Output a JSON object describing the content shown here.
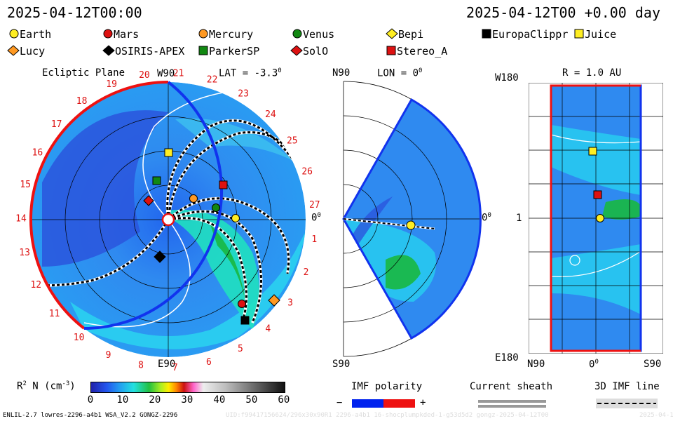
{
  "header": {
    "left_timestamp": "2025-04-12T00:00",
    "right_timestamp": "2025-04-12T00 +0.00 day"
  },
  "legend": {
    "bodies": [
      {
        "name": "Earth",
        "shape": "circle",
        "color": "#ffee22"
      },
      {
        "name": "Mars",
        "shape": "circle",
        "color": "#dd1111"
      },
      {
        "name": "Mercury",
        "shape": "circle",
        "color": "#ff9922"
      },
      {
        "name": "Venus",
        "shape": "circle",
        "color": "#118811"
      },
      {
        "name": "Bepi",
        "shape": "diamond",
        "color": "#ffee22"
      },
      {
        "name": "EuropaClippr",
        "shape": "square",
        "color": "#000000"
      },
      {
        "name": "Juice",
        "shape": "square",
        "color": "#ffee22"
      },
      {
        "name": "Lucy",
        "shape": "diamond",
        "color": "#ff9922"
      },
      {
        "name": "OSIRIS-APEX",
        "shape": "diamond",
        "color": "#000000"
      },
      {
        "name": "ParkerSP",
        "shape": "square",
        "color": "#118811"
      },
      {
        "name": "SolO",
        "shape": "diamond",
        "color": "#dd1111"
      },
      {
        "name": "Stereo_A",
        "shape": "square",
        "color": "#dd1111"
      }
    ]
  },
  "ecliptic_panel": {
    "title": "Ecliptic Plane",
    "lat_label": "LAT = -3.3",
    "lat_sup": "0",
    "top_label": "W90",
    "bottom_label": "E90",
    "right_label": "0",
    "right_sup": "0",
    "carrington_ticks": [
      "1",
      "2",
      "3",
      "4",
      "5",
      "6",
      "7",
      "8",
      "9",
      "10",
      "11",
      "12",
      "13",
      "14",
      "15",
      "16",
      "17",
      "18",
      "19",
      "20",
      "21",
      "22",
      "23",
      "24",
      "25",
      "26",
      "27"
    ],
    "tick_color": "#dd1111"
  },
  "meridional_panel": {
    "top_label": "N90",
    "lon_label": "LON = 0",
    "lon_sup": "0",
    "bottom_label": "S90",
    "right_label": "0",
    "right_sup": "0"
  },
  "map_panel": {
    "r_label": "R = 1.0 AU",
    "top_left_label": "W180",
    "mid_left_label": "1",
    "bottom_left_label": "E180",
    "x_left_label": "N90",
    "x_mid_label": "0",
    "x_mid_sup": "0",
    "x_right_label": "S90"
  },
  "colorbar": {
    "title": "R",
    "title_sup": "2",
    "title_rest": " N (cm",
    "title_sup2": "-3",
    "title_end": ")",
    "ticks": [
      "0",
      "10",
      "20",
      "30",
      "40",
      "50",
      "60"
    ],
    "range": [
      0,
      60
    ]
  },
  "imf_polarity": {
    "title": "IMF polarity",
    "minus": "−",
    "plus": "+",
    "neg_color": "#0022ee",
    "pos_color": "#ee1111"
  },
  "current_sheath": {
    "title": "Current sheath"
  },
  "imf_line": {
    "title": "3D IMF line"
  },
  "footer": {
    "model_info": "ENLIL-2.7 lowres-2296-a4b1 WSA_V2.2 GONGZ-2296",
    "run_info": "UID:f99417156624/296x30x90R1 2296-a4b1 16-shocplumpkded-1-g53d5d2 gongz-2025-04-12T00",
    "date_info": "2025-04-13"
  }
}
